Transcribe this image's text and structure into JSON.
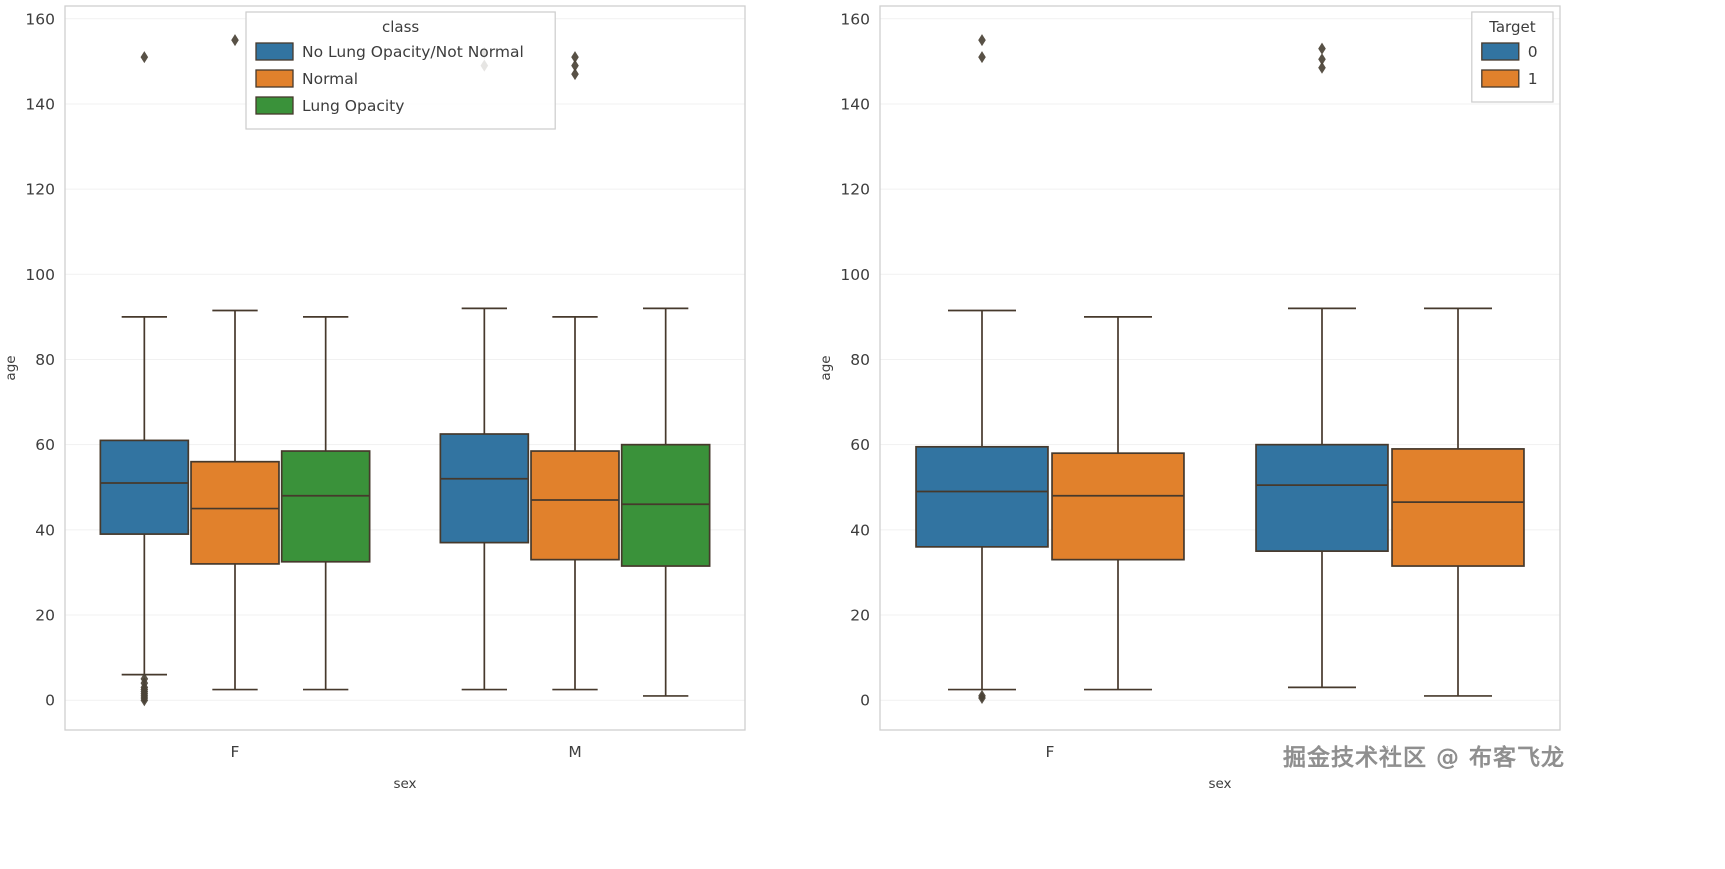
{
  "watermark": {
    "text": "掘金技术社区 @ 布客飞龙"
  },
  "chart_data": [
    {
      "type": "boxplot",
      "title": "",
      "xlabel": "sex",
      "ylabel": "age",
      "categories": [
        "F",
        "M"
      ],
      "yticks": [
        0,
        20,
        40,
        60,
        80,
        100,
        120,
        140,
        160
      ],
      "ylim": [
        -7,
        163
      ],
      "grid": true,
      "legend": {
        "title": "class",
        "position": "upper-left"
      },
      "series": [
        {
          "name": "No Lung Opacity/Not Normal",
          "color": "#3274a1",
          "boxes": [
            {
              "category": "F",
              "whislo": 6,
              "q1": 39,
              "med": 51,
              "q3": 61,
              "whishi": 90,
              "fliers": [
                151,
                5,
                4,
                3,
                2.5,
                2,
                1.5,
                1,
                0.5,
                0
              ]
            },
            {
              "category": "M",
              "whislo": 2.5,
              "q1": 37,
              "med": 52,
              "q3": 62.5,
              "whishi": 92,
              "fliers": [
                152,
                149
              ]
            }
          ]
        },
        {
          "name": "Normal",
          "color": "#e1812c",
          "boxes": [
            {
              "category": "F",
              "whislo": 2.5,
              "q1": 32,
              "med": 45,
              "q3": 56,
              "whishi": 91.5,
              "fliers": [
                155
              ]
            },
            {
              "category": "M",
              "whislo": 2.5,
              "q1": 33,
              "med": 47,
              "q3": 58.5,
              "whishi": 90,
              "fliers": [
                151,
                149,
                147
              ]
            }
          ]
        },
        {
          "name": "Lung Opacity",
          "color": "#3a923a",
          "boxes": [
            {
              "category": "F",
              "whislo": 2.5,
              "q1": 32.5,
              "med": 48,
              "q3": 58.5,
              "whishi": 90,
              "fliers": []
            },
            {
              "category": "M",
              "whislo": 1,
              "q1": 31.5,
              "med": 46,
              "q3": 60,
              "whishi": 92,
              "fliers": []
            }
          ]
        }
      ]
    },
    {
      "type": "boxplot",
      "title": "",
      "xlabel": "sex",
      "ylabel": "age",
      "categories": [
        "F",
        "M"
      ],
      "yticks": [
        0,
        20,
        40,
        60,
        80,
        100,
        120,
        140,
        160
      ],
      "ylim": [
        -7,
        163
      ],
      "grid": true,
      "legend": {
        "title": "Target",
        "position": "upper-right"
      },
      "series": [
        {
          "name": "0",
          "color": "#3274a1",
          "boxes": [
            {
              "category": "F",
              "whislo": 2.5,
              "q1": 36,
              "med": 49,
              "q3": 59.5,
              "whishi": 91.5,
              "fliers": [
                155,
                151,
                1,
                0.5
              ]
            },
            {
              "category": "M",
              "whislo": 3,
              "q1": 35,
              "med": 50.5,
              "q3": 60,
              "whishi": 92,
              "fliers": [
                153,
                150.5,
                148.5
              ]
            }
          ]
        },
        {
          "name": "1",
          "color": "#e1812c",
          "boxes": [
            {
              "category": "F",
              "whislo": 2.5,
              "q1": 33,
              "med": 48,
              "q3": 58,
              "whishi": 90,
              "fliers": []
            },
            {
              "category": "M",
              "whislo": 1,
              "q1": 31.5,
              "med": 46.5,
              "q3": 59,
              "whishi": 92,
              "fliers": []
            }
          ]
        }
      ]
    }
  ]
}
